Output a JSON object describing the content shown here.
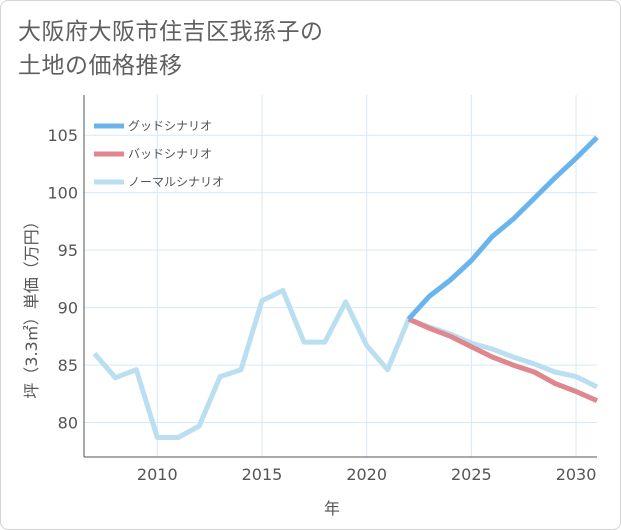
{
  "title_lines": [
    "大阪府大阪市住吉区我孫子の",
    "土地の価格推移"
  ],
  "chart_data": {
    "type": "line",
    "title": "大阪府大阪市住吉区我孫子の土地の価格推移",
    "xlabel": "年",
    "ylabel": "坪（3.3㎡）単価（万円）",
    "xlim": [
      2006.5,
      2031
    ],
    "ylim": [
      77,
      108.5
    ],
    "x_ticks": [
      2010,
      2015,
      2020,
      2025,
      2030
    ],
    "y_ticks": [
      80,
      85,
      90,
      95,
      100,
      105
    ],
    "grid": true,
    "legend_position": "top-left",
    "series": [
      {
        "name": "グッドシナリオ",
        "color": "#6ab4ee",
        "x": [
          2022,
          2023,
          2024,
          2025,
          2026,
          2027,
          2028,
          2029,
          2030,
          2031
        ],
        "y": [
          89.0,
          91.0,
          92.4,
          94.1,
          96.2,
          97.7,
          99.5,
          101.3,
          103.0,
          104.8
        ]
      },
      {
        "name": "バッドシナリオ",
        "color": "#e0868e",
        "x": [
          2022,
          2023,
          2024,
          2025,
          2026,
          2027,
          2028,
          2029,
          2030,
          2031
        ],
        "y": [
          89.0,
          88.2,
          87.5,
          86.6,
          85.7,
          85.0,
          84.4,
          83.4,
          82.7,
          81.9
        ]
      },
      {
        "name": "ノーマルシナリオ",
        "color": "#b9dff0",
        "x": [
          2007,
          2008,
          2009,
          2010,
          2011,
          2012,
          2013,
          2014,
          2015,
          2016,
          2017,
          2018,
          2019,
          2020,
          2021,
          2022,
          2023,
          2024,
          2025,
          2026,
          2027,
          2028,
          2029,
          2030,
          2031
        ],
        "y": [
          86.0,
          83.9,
          84.6,
          78.7,
          78.7,
          79.7,
          84.0,
          84.6,
          90.6,
          91.5,
          87.0,
          87.0,
          90.5,
          86.7,
          84.6,
          89.0,
          88.3,
          87.7,
          86.9,
          86.4,
          85.7,
          85.1,
          84.4,
          84.0,
          83.1
        ]
      }
    ]
  }
}
